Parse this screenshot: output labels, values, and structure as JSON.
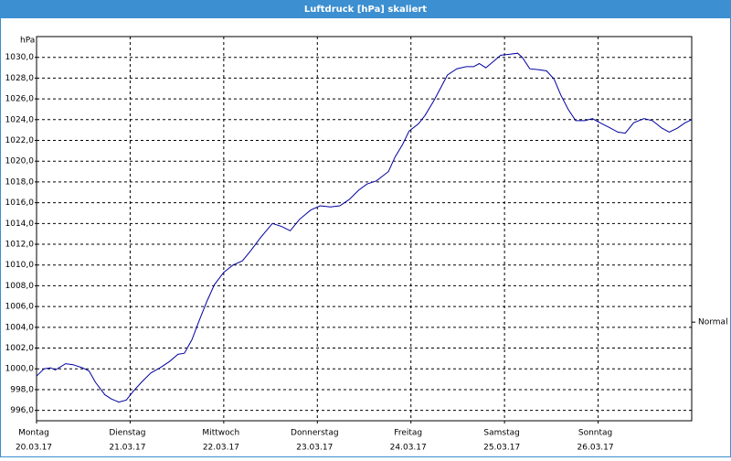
{
  "chart_data": {
    "type": "line",
    "title": "Luftdruck [hPa] skaliert",
    "y_label": "hPa",
    "xlim": [
      0,
      7
    ],
    "xticks": [
      {
        "value": 0,
        "label": "Montag"
      },
      {
        "value": 1,
        "label": "Dienstag"
      },
      {
        "value": 2,
        "label": "Mittwoch"
      },
      {
        "value": 3,
        "label": "Donnerstag"
      },
      {
        "value": 4,
        "label": "Freitag"
      },
      {
        "value": 5,
        "label": "Samstag"
      },
      {
        "value": 6,
        "label": "Sonntag"
      }
    ],
    "xtick_dates": [
      "20.03.17",
      "21.03.17",
      "22.03.17",
      "23.03.17",
      "24.03.17",
      "25.03.17",
      "26.03.17"
    ],
    "ylim": [
      995,
      1032
    ],
    "yticks": [
      {
        "value": 996,
        "label": "996,0"
      },
      {
        "value": 998,
        "label": "998,0"
      },
      {
        "value": 1000,
        "label": "1000,0"
      },
      {
        "value": 1002,
        "label": "1002,0"
      },
      {
        "value": 1004,
        "label": "1004,0"
      },
      {
        "value": 1006,
        "label": "1006,0"
      },
      {
        "value": 1008,
        "label": "1008,0"
      },
      {
        "value": 1010,
        "label": "1010,0"
      },
      {
        "value": 1012,
        "label": "1012,0"
      },
      {
        "value": 1014,
        "label": "1014,0"
      },
      {
        "value": 1016,
        "label": "1016,0"
      },
      {
        "value": 1018,
        "label": "1018,0"
      },
      {
        "value": 1020,
        "label": "1020,0"
      },
      {
        "value": 1022,
        "label": "1022,0"
      },
      {
        "value": 1024,
        "label": "1024,0"
      },
      {
        "value": 1026,
        "label": "1026,0"
      },
      {
        "value": 1028,
        "label": "1028,0"
      },
      {
        "value": 1030,
        "label": "1030,0"
      }
    ],
    "grid": true,
    "annotations": [
      {
        "label": "Normal",
        "y": 1004.5
      }
    ],
    "series": [
      {
        "name": "Luftdruck",
        "color": "#0000a0",
        "x": [
          0,
          0.08,
          0.15,
          0.2,
          0.24,
          0.31,
          0.39,
          0.49,
          0.56,
          0.63,
          0.73,
          0.8,
          0.88,
          0.96,
          1.03,
          1.12,
          1.22,
          1.32,
          1.42,
          1.51,
          1.58,
          1.66,
          1.74,
          1.82,
          1.9,
          2.0,
          2.1,
          2.2,
          2.29,
          2.39,
          2.52,
          2.62,
          2.71,
          2.81,
          2.93,
          3.03,
          3.14,
          3.24,
          3.34,
          3.44,
          3.53,
          3.63,
          3.76,
          3.83,
          3.91,
          3.98,
          4.08,
          4.15,
          4.25,
          4.32,
          4.39,
          4.49,
          4.59,
          4.67,
          4.73,
          4.8,
          4.88,
          4.96,
          5.06,
          5.14,
          5.19,
          5.27,
          5.37,
          5.45,
          5.53,
          5.6,
          5.68,
          5.76,
          5.86,
          5.94,
          6.02,
          6.13,
          6.21,
          6.29,
          6.38,
          6.49,
          6.58,
          6.68,
          6.76,
          6.85,
          6.93,
          7.0
        ],
        "values": [
          999.3,
          1000.0,
          1000.1,
          999.9,
          1000.1,
          1000.5,
          1000.4,
          1000.1,
          999.8,
          998.7,
          997.5,
          997.1,
          996.8,
          997.0,
          997.8,
          998.7,
          999.6,
          1000.1,
          1000.7,
          1001.4,
          1001.5,
          1002.8,
          1004.7,
          1006.5,
          1008.1,
          1009.3,
          1010.0,
          1010.4,
          1011.4,
          1012.6,
          1014.0,
          1013.7,
          1013.3,
          1014.4,
          1015.3,
          1015.7,
          1015.6,
          1015.7,
          1016.3,
          1017.2,
          1017.8,
          1018.1,
          1019.0,
          1020.4,
          1021.6,
          1022.9,
          1023.6,
          1024.4,
          1025.9,
          1027.1,
          1028.3,
          1028.9,
          1029.1,
          1029.1,
          1029.4,
          1029.0,
          1029.6,
          1030.2,
          1030.3,
          1030.4,
          1030.0,
          1028.9,
          1028.8,
          1028.7,
          1027.9,
          1026.4,
          1025.0,
          1023.9,
          1023.9,
          1024.1,
          1023.7,
          1023.2,
          1022.8,
          1022.7,
          1023.7,
          1024.1,
          1023.9,
          1023.2,
          1022.8,
          1023.2,
          1023.7,
          1024.0
        ]
      }
    ]
  }
}
